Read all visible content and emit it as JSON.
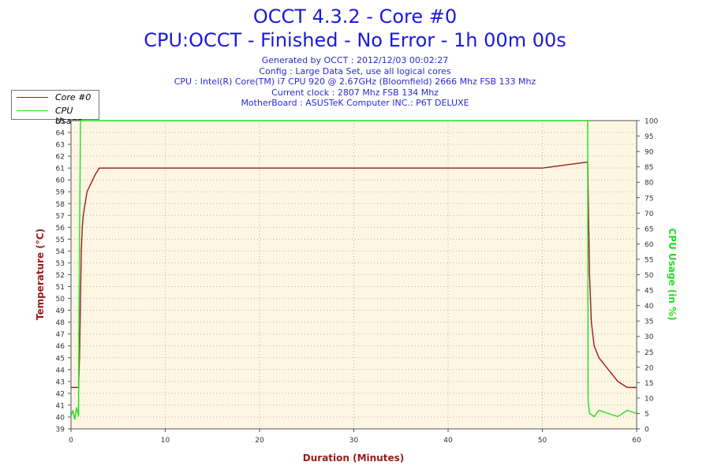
{
  "title": "OCCT 4.3.2 - Core #0",
  "subtitle": "CPU:OCCT - Finished - No Error - 1h 00m 00s",
  "info_lines": [
    "Generated by OCCT : 2012/12/03 00:02:27",
    "Config : Large Data Set, use all logical cores",
    "CPU : Intel(R) Core(TM) i7 CPU 920 @ 2.67GHz (Bloomfield) 2666 Mhz FSB 133 Mhz",
    "Current clock : 2807 Mhz FSB 134 Mhz",
    "MotherBoard : ASUSTeK Computer INC.: P6T DELUXE"
  ],
  "legend": [
    {
      "label": "Core #0",
      "color": "#9b1a1a"
    },
    {
      "label": "CPU Usage",
      "color": "#22dd22"
    }
  ],
  "chart_data": {
    "type": "line",
    "title": "OCCT 4.3.2 - Core #0",
    "xlabel": "Duration (Minutes)",
    "ylabel": "Temperature (°C)",
    "y2label": "CPU Usage (in %)",
    "xlim": [
      0,
      60
    ],
    "ylim": [
      39,
      65
    ],
    "y2lim": [
      0,
      100
    ],
    "x_ticks": [
      0,
      10,
      20,
      30,
      40,
      50,
      60
    ],
    "y_ticks": [
      39,
      40,
      41,
      42,
      43,
      44,
      45,
      46,
      47,
      48,
      49,
      50,
      51,
      52,
      53,
      54,
      55,
      56,
      57,
      58,
      59,
      60,
      61,
      62,
      63,
      64,
      65
    ],
    "y2_ticks": [
      0,
      5,
      10,
      15,
      20,
      25,
      30,
      35,
      40,
      45,
      50,
      55,
      60,
      65,
      70,
      75,
      80,
      85,
      90,
      95,
      100
    ],
    "grid": true,
    "legend_position": "top-left",
    "series": [
      {
        "name": "Core #0",
        "axis": "left",
        "color": "#9b1a1a",
        "x": [
          0,
          0.3,
          0.6,
          0.8,
          0.9,
          1.0,
          1.1,
          1.2,
          1.3,
          1.5,
          1.7,
          2.0,
          2.3,
          2.6,
          3.0,
          5.0,
          10.0,
          15.0,
          20.0,
          25.0,
          30.0,
          35.0,
          40.0,
          45.0,
          50.0,
          54.8,
          55.0,
          55.2,
          55.5,
          56.0,
          56.5,
          57.0,
          57.5,
          58.0,
          59.0,
          60.0
        ],
        "values": [
          42.5,
          42.5,
          42.5,
          42.5,
          45,
          50,
          54,
          56,
          57,
          58,
          59,
          59.5,
          60,
          60.5,
          61,
          61,
          61,
          61,
          61,
          61,
          61,
          61,
          61,
          61,
          61,
          61.5,
          52,
          48,
          46,
          45,
          44.5,
          44,
          43.5,
          43,
          42.5,
          42.5
        ]
      },
      {
        "name": "CPU Usage",
        "axis": "right",
        "color": "#22dd22",
        "x": [
          0,
          0.2,
          0.4,
          0.6,
          0.8,
          0.85,
          1.0,
          2.0,
          10.0,
          20.0,
          30.0,
          40.0,
          50.0,
          54.8,
          54.85,
          55.0,
          55.5,
          56.0,
          57.0,
          58.0,
          59.0,
          60.0
        ],
        "values": [
          4,
          6,
          3,
          7,
          4,
          40,
          100,
          100,
          100,
          100,
          100,
          100,
          100,
          100,
          9,
          5,
          4,
          6,
          5,
          4,
          6,
          5
        ]
      }
    ]
  }
}
